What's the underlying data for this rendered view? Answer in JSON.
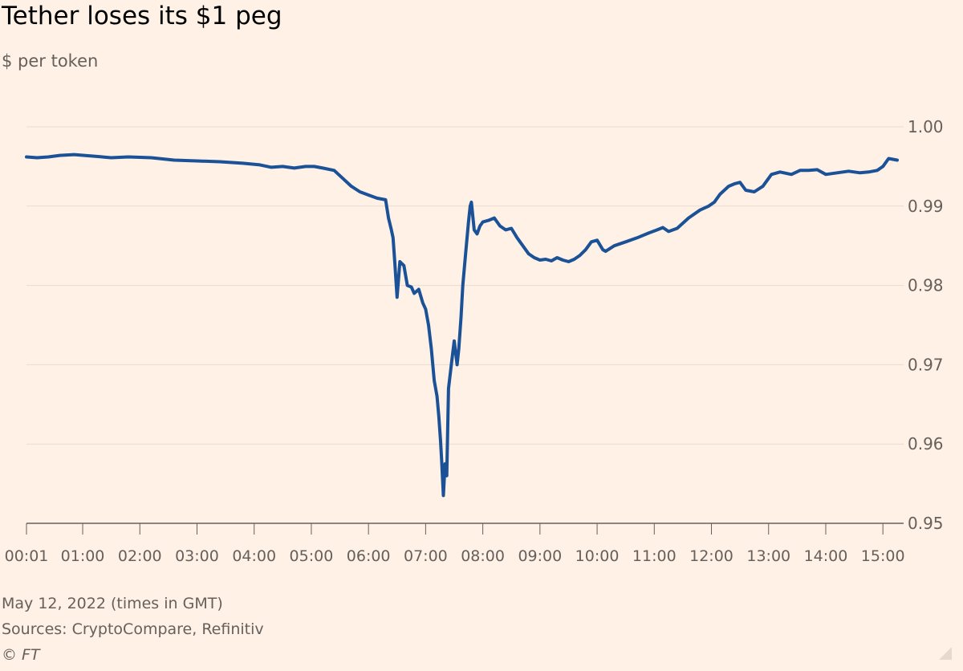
{
  "header": {
    "title": "Tether loses its $1 peg",
    "subtitle": "$ per token"
  },
  "footer": {
    "note": "May 12, 2022 (times in GMT)",
    "source": "Sources: CryptoCompare, Refinitiv",
    "copyright": "© FT"
  },
  "colors": {
    "line": "#1b5297",
    "grid": "#e9dbd0",
    "axis": "#66605c",
    "background": "#fff1e5"
  },
  "chart_data": {
    "type": "line",
    "title": "Tether loses its $1 peg",
    "ylabel": "$ per token",
    "xlabel": "",
    "ylim": [
      0.95,
      1.0
    ],
    "xlim": [
      0.0167,
      15.25
    ],
    "grid": true,
    "y_ticks": [
      {
        "value": 1.0,
        "label": "1.00"
      },
      {
        "value": 0.99,
        "label": "0.99"
      },
      {
        "value": 0.98,
        "label": "0.98"
      },
      {
        "value": 0.97,
        "label": "0.97"
      },
      {
        "value": 0.96,
        "label": "0.96"
      },
      {
        "value": 0.95,
        "label": "0.95"
      }
    ],
    "x_ticks": [
      {
        "value": 0.0167,
        "label": "00:01"
      },
      {
        "value": 1,
        "label": "01:00"
      },
      {
        "value": 2,
        "label": "02:00"
      },
      {
        "value": 3,
        "label": "03:00"
      },
      {
        "value": 4,
        "label": "04:00"
      },
      {
        "value": 5,
        "label": "05:00"
      },
      {
        "value": 6,
        "label": "06:00"
      },
      {
        "value": 7,
        "label": "07:00"
      },
      {
        "value": 8,
        "label": "08:00"
      },
      {
        "value": 9,
        "label": "09:00"
      },
      {
        "value": 10,
        "label": "10:00"
      },
      {
        "value": 11,
        "label": "11:00"
      },
      {
        "value": 12,
        "label": "12:00"
      },
      {
        "value": 13,
        "label": "13:00"
      },
      {
        "value": 14,
        "label": "14:00"
      },
      {
        "value": 15,
        "label": "15:00"
      }
    ],
    "series": [
      {
        "x": [
          0.0167,
          0.2,
          0.4,
          0.6,
          0.85,
          1.2,
          1.5,
          1.8,
          2.2,
          2.6,
          3.0,
          3.4,
          3.8,
          4.1,
          4.3,
          4.5,
          4.7,
          4.9,
          5.05,
          5.2,
          5.4,
          5.55,
          5.7,
          5.85,
          6.0,
          6.15,
          6.3,
          6.35,
          6.4,
          6.43,
          6.46,
          6.5,
          6.55,
          6.62,
          6.68,
          6.75,
          6.8,
          6.88,
          6.95,
          7.0,
          7.05,
          7.1,
          7.15,
          7.2,
          7.23,
          7.26,
          7.28,
          7.31,
          7.34,
          7.37,
          7.4,
          7.45,
          7.5,
          7.55,
          7.58,
          7.62,
          7.65,
          7.7,
          7.75,
          7.78,
          7.8,
          7.85,
          7.9,
          7.95,
          8.0,
          8.1,
          8.2,
          8.3,
          8.4,
          8.5,
          8.6,
          8.7,
          8.8,
          8.9,
          9.0,
          9.1,
          9.2,
          9.3,
          9.4,
          9.5,
          9.6,
          9.7,
          9.8,
          9.9,
          10.0,
          10.1,
          10.15,
          10.3,
          10.5,
          10.7,
          10.9,
          11.05,
          11.15,
          11.25,
          11.4,
          11.6,
          11.8,
          11.95,
          12.05,
          12.15,
          12.3,
          12.4,
          12.5,
          12.6,
          12.75,
          12.9,
          13.05,
          13.2,
          13.4,
          13.55,
          13.7,
          13.85,
          14.0,
          14.2,
          14.4,
          14.6,
          14.75,
          14.9,
          15.0,
          15.1,
          15.25
        ],
        "values": [
          0.9962,
          0.9961,
          0.9962,
          0.9964,
          0.9965,
          0.9963,
          0.9961,
          0.9962,
          0.9961,
          0.9958,
          0.9957,
          0.9956,
          0.9954,
          0.9952,
          0.9949,
          0.995,
          0.9948,
          0.995,
          0.995,
          0.9948,
          0.9945,
          0.9935,
          0.9925,
          0.9918,
          0.9914,
          0.991,
          0.9908,
          0.9885,
          0.987,
          0.986,
          0.983,
          0.9785,
          0.983,
          0.9825,
          0.98,
          0.9798,
          0.979,
          0.9795,
          0.9778,
          0.977,
          0.975,
          0.972,
          0.968,
          0.966,
          0.9635,
          0.9605,
          0.958,
          0.9535,
          0.9575,
          0.956,
          0.967,
          0.97,
          0.973,
          0.97,
          0.972,
          0.976,
          0.98,
          0.984,
          0.988,
          0.99,
          0.9905,
          0.987,
          0.9865,
          0.9875,
          0.988,
          0.9882,
          0.9885,
          0.9875,
          0.987,
          0.9872,
          0.986,
          0.985,
          0.984,
          0.9835,
          0.9832,
          0.9833,
          0.9831,
          0.9835,
          0.9832,
          0.983,
          0.9833,
          0.9838,
          0.9845,
          0.9855,
          0.9857,
          0.9845,
          0.9843,
          0.985,
          0.9855,
          0.986,
          0.9866,
          0.987,
          0.9873,
          0.9868,
          0.9872,
          0.9885,
          0.9895,
          0.99,
          0.9905,
          0.9915,
          0.9925,
          0.9928,
          0.993,
          0.992,
          0.9918,
          0.9925,
          0.994,
          0.9943,
          0.994,
          0.9945,
          0.9945,
          0.9946,
          0.994,
          0.9942,
          0.9944,
          0.9942,
          0.9943,
          0.9945,
          0.995,
          0.996,
          0.9958
        ]
      }
    ]
  }
}
